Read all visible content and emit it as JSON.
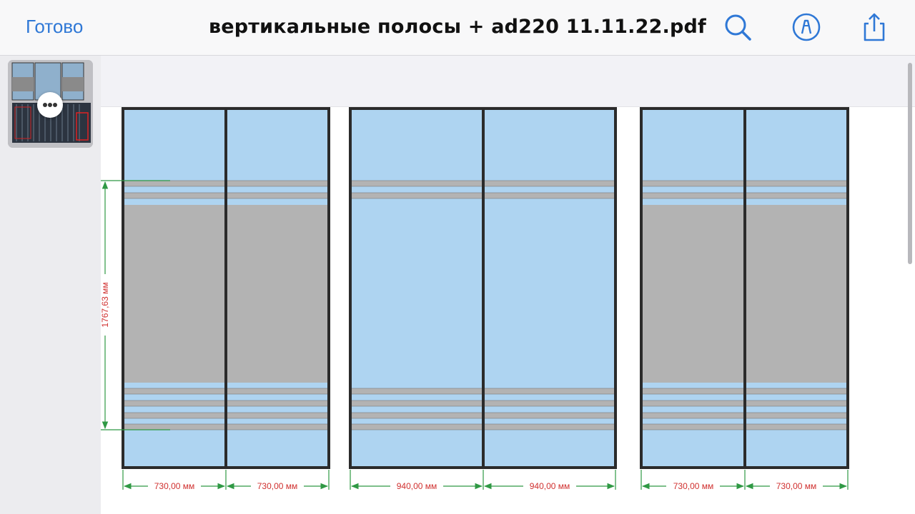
{
  "toolbar": {
    "done_label": "Готово",
    "title": "вертикальные полосы + ad220 11.11.22.pdf",
    "icons": [
      "search-icon",
      "markup-icon",
      "share-icon"
    ],
    "accent_color": "#2f78d6"
  },
  "sidebar": {
    "thumbnail": "page-thumbnail",
    "more_button_icon": "ellipsis-icon"
  },
  "drawing": {
    "colors": {
      "glass": "#aed4f1",
      "gray_panel": "#b3b3b3",
      "frame": "#2b2b2b",
      "dimension_line": "#2f9944",
      "dimension_text": "#d0302f"
    },
    "height_dimension": "1767,63 мм",
    "width_dimensions": [
      "730,00 мм",
      "730,00 мм",
      "940,00 мм",
      "940,00 мм",
      "730,00 мм",
      "730,00 мм"
    ]
  }
}
